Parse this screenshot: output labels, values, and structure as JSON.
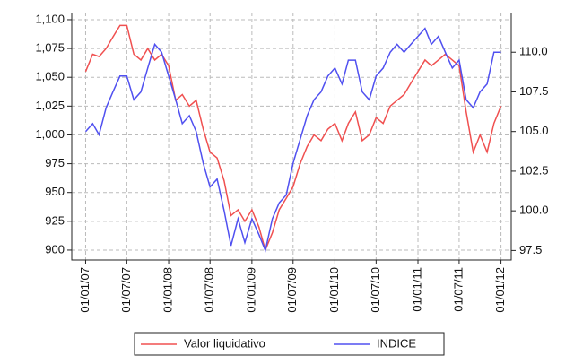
{
  "chart_data": {
    "type": "line",
    "x": [
      "2007-01-01",
      "2007-02-01",
      "2007-03-01",
      "2007-04-01",
      "2007-05-01",
      "2007-06-01",
      "2007-07-01",
      "2007-08-01",
      "2007-09-01",
      "2007-10-01",
      "2007-11-01",
      "2007-12-01",
      "2008-01-01",
      "2008-02-01",
      "2008-03-01",
      "2008-04-01",
      "2008-05-01",
      "2008-06-01",
      "2008-07-01",
      "2008-08-01",
      "2008-09-01",
      "2008-10-01",
      "2008-11-01",
      "2008-12-01",
      "2009-01-01",
      "2009-02-01",
      "2009-03-01",
      "2009-04-01",
      "2009-05-01",
      "2009-06-01",
      "2009-07-01",
      "2009-08-01",
      "2009-09-01",
      "2009-10-01",
      "2009-11-01",
      "2009-12-01",
      "2010-01-01",
      "2010-02-01",
      "2010-03-01",
      "2010-04-01",
      "2010-05-01",
      "2010-06-01",
      "2010-07-01",
      "2010-08-01",
      "2010-09-01",
      "2010-10-01",
      "2010-11-01",
      "2010-12-01",
      "2011-01-01",
      "2011-02-01",
      "2011-03-01",
      "2011-04-01",
      "2011-05-01",
      "2011-06-01",
      "2011-07-01",
      "2011-08-01",
      "2011-09-01",
      "2011-10-01",
      "2011-11-01",
      "2011-12-01",
      "2012-01-01"
    ],
    "series": [
      {
        "name": "Valor liquidativo",
        "color": "#f05050",
        "values": [
          1055,
          1070,
          1068,
          1075,
          1085,
          1095,
          1095,
          1070,
          1065,
          1075,
          1065,
          1070,
          1060,
          1030,
          1035,
          1025,
          1030,
          1005,
          985,
          980,
          960,
          930,
          935,
          925,
          935,
          920,
          900,
          915,
          935,
          945,
          955,
          975,
          990,
          1000,
          995,
          1005,
          1010,
          995,
          1010,
          1020,
          995,
          1000,
          1015,
          1010,
          1025,
          1030,
          1035,
          1045,
          1055,
          1065,
          1060,
          1065,
          1070,
          1065,
          1060,
          1020,
          985,
          1000,
          985,
          1010,
          1025
        ]
      },
      {
        "name": "INDICE",
        "color": "#5050f0",
        "axis": "y2",
        "values": [
          105.0,
          105.5,
          104.8,
          106.5,
          107.5,
          108.5,
          108.5,
          107.0,
          107.5,
          109.0,
          110.5,
          110.0,
          108.5,
          107.0,
          105.5,
          106.0,
          105.0,
          103.0,
          101.5,
          102.0,
          100.0,
          97.8,
          99.5,
          98.0,
          99.5,
          98.5,
          97.5,
          99.5,
          100.5,
          101.0,
          103.0,
          104.5,
          106.0,
          107.0,
          107.5,
          108.5,
          109.0,
          108.0,
          109.5,
          109.5,
          107.5,
          107.0,
          108.5,
          109.0,
          110.0,
          110.5,
          110.0,
          110.5,
          111.0,
          111.5,
          110.5,
          111.0,
          110.0,
          109.0,
          109.5,
          107.0,
          106.5,
          107.5,
          108.0,
          110.0,
          110.0
        ]
      }
    ],
    "xlim": [
      "2006-11-01",
      "2012-02-15"
    ],
    "xticks": [
      {
        "value": "2007-01-01",
        "label": "01/01/07"
      },
      {
        "value": "2007-07-01",
        "label": "01/07/07"
      },
      {
        "value": "2008-01-01",
        "label": "01/01/08"
      },
      {
        "value": "2008-07-01",
        "label": "01/07/08"
      },
      {
        "value": "2009-01-01",
        "label": "01/01/09"
      },
      {
        "value": "2009-07-01",
        "label": "01/07/09"
      },
      {
        "value": "2010-01-01",
        "label": "01/01/10"
      },
      {
        "value": "2010-07-01",
        "label": "01/07/10"
      },
      {
        "value": "2011-01-01",
        "label": "01/01/11"
      },
      {
        "value": "2011-07-01",
        "label": "01/07/11"
      },
      {
        "value": "2012-01-01",
        "label": "01/01/12"
      }
    ],
    "ylim": [
      891.4,
      1106.2
    ],
    "yticks": [
      900,
      925,
      950,
      975,
      {
        "value": 1000,
        "label": "1,000"
      },
      {
        "value": 1025,
        "label": "1,025"
      },
      {
        "value": 1050,
        "label": "1,050"
      },
      {
        "value": 1075,
        "label": "1,075"
      },
      {
        "value": 1100,
        "label": "1,100"
      }
    ],
    "y2lim": [
      96.9,
      112.5
    ],
    "y2ticks": [
      97.5,
      {
        "value": 100,
        "label": "100.0"
      },
      102.5,
      {
        "value": 105,
        "label": "105.0"
      },
      107.5,
      {
        "value": 110,
        "label": "110.0"
      }
    ],
    "grid": true
  }
}
